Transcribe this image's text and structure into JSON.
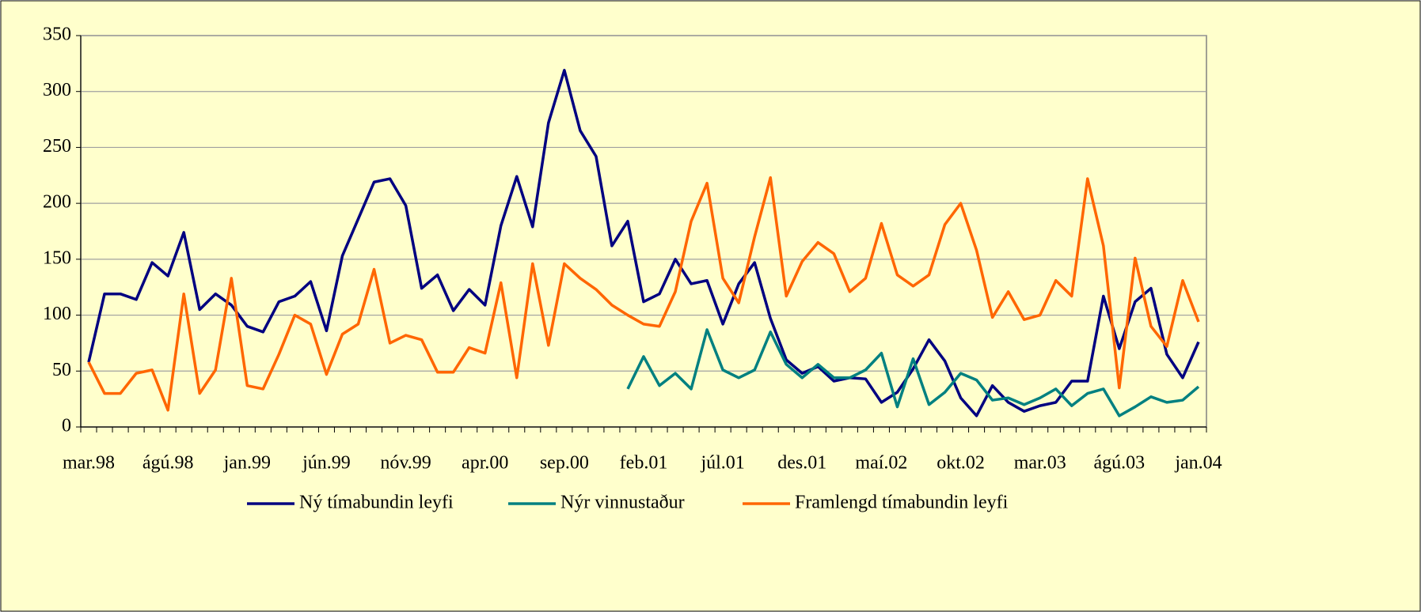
{
  "chart_data": {
    "type": "line",
    "categories": [
      "mar.98",
      null,
      null,
      null,
      null,
      "ágú.98",
      null,
      null,
      null,
      null,
      "jan.99",
      null,
      null,
      null,
      null,
      "jún.99",
      null,
      null,
      null,
      null,
      "nóv.99",
      null,
      null,
      null,
      null,
      "apr.00",
      null,
      null,
      null,
      null,
      "sep.00",
      null,
      null,
      null,
      null,
      "feb.01",
      null,
      null,
      null,
      null,
      "júl.01",
      null,
      null,
      null,
      null,
      "des.01",
      null,
      null,
      null,
      null,
      "maí.02",
      null,
      null,
      null,
      null,
      "okt.02",
      null,
      null,
      null,
      null,
      "mar.03",
      null,
      null,
      null,
      null,
      "ágú.03",
      null,
      null,
      null,
      null,
      "jan.04"
    ],
    "series": [
      {
        "name": "Ný tímabundin leyfi",
        "color": "#000080",
        "values": [
          58,
          119,
          119,
          114,
          147,
          135,
          174,
          105,
          119,
          109,
          90,
          85,
          112,
          117,
          130,
          86,
          153,
          186,
          219,
          222,
          198,
          124,
          136,
          104,
          123,
          109,
          180,
          224,
          179,
          272,
          319,
          265,
          242,
          162,
          184,
          112,
          119,
          150,
          128,
          131,
          92,
          128,
          147,
          97,
          60,
          48,
          54,
          41,
          44,
          43,
          22,
          31,
          52,
          78,
          59,
          26,
          10,
          37,
          22,
          14,
          19,
          22,
          41,
          41,
          117,
          70,
          112,
          124,
          65,
          44,
          76
        ]
      },
      {
        "name": "Nýr vinnustaður",
        "color": "#008080",
        "values": [
          null,
          null,
          null,
          null,
          null,
          null,
          null,
          null,
          null,
          null,
          null,
          null,
          null,
          null,
          null,
          null,
          null,
          null,
          null,
          null,
          null,
          null,
          null,
          null,
          null,
          null,
          null,
          null,
          null,
          null,
          null,
          null,
          null,
          null,
          34,
          63,
          37,
          48,
          34,
          87,
          51,
          44,
          51,
          85,
          56,
          44,
          56,
          44,
          44,
          51,
          66,
          18,
          61,
          20,
          31,
          48,
          42,
          24,
          26,
          20,
          26,
          34,
          19,
          30,
          34,
          10,
          18,
          27,
          22,
          24,
          36
        ]
      },
      {
        "name": "Framlengd tímabundin leyfi",
        "color": "#ff6600",
        "values": [
          58,
          30,
          30,
          48,
          51,
          15,
          119,
          30,
          51,
          133,
          37,
          34,
          65,
          100,
          92,
          47,
          83,
          92,
          141,
          75,
          82,
          78,
          49,
          49,
          71,
          66,
          129,
          44,
          146,
          73,
          146,
          133,
          123,
          109,
          100,
          92,
          90,
          121,
          184,
          218,
          133,
          111,
          170,
          223,
          117,
          148,
          165,
          155,
          121,
          133,
          182,
          136,
          126,
          136,
          181,
          200,
          158,
          98,
          121,
          96,
          100,
          131,
          117,
          222,
          162,
          35,
          151,
          90,
          72,
          131,
          94
        ]
      }
    ],
    "ylim": [
      0,
      350
    ],
    "yticks": [
      0,
      50,
      100,
      150,
      200,
      250,
      300,
      350
    ],
    "grid": true,
    "legend": "bottom"
  }
}
